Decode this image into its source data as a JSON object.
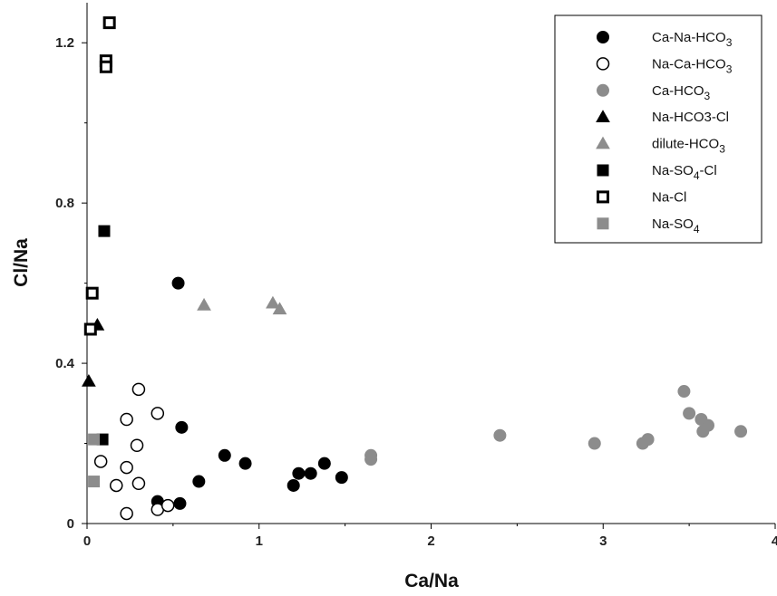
{
  "chart_data": {
    "type": "scatter",
    "xlabel": "Ca/Na",
    "ylabel": "Cl/Na",
    "xlim": [
      0,
      4
    ],
    "ylim": [
      0,
      1.3
    ],
    "x_ticks": [
      "0",
      "1",
      "2",
      "3",
      "4"
    ],
    "y_ticks": [
      "0",
      "0.4",
      "0.8",
      "1.2"
    ],
    "grid": false,
    "legend_position": "top-right",
    "colors": {
      "black": "#000000",
      "gray": "#8c8c8c"
    },
    "series": [
      {
        "name": "Ca-Na-HCO3",
        "marker": "circle-filled",
        "color": "#000000",
        "points": [
          [
            0.53,
            0.6
          ],
          [
            0.55,
            0.24
          ],
          [
            0.41,
            0.055
          ],
          [
            0.54,
            0.05
          ],
          [
            0.65,
            0.105
          ],
          [
            0.8,
            0.17
          ],
          [
            0.92,
            0.15
          ],
          [
            1.2,
            0.095
          ],
          [
            1.23,
            0.125
          ],
          [
            1.3,
            0.125
          ],
          [
            1.38,
            0.15
          ],
          [
            1.48,
            0.115
          ]
        ]
      },
      {
        "name": "Na-Ca-HCO3",
        "marker": "circle-open",
        "color": "#000000",
        "points": [
          [
            0.08,
            0.155
          ],
          [
            0.17,
            0.095
          ],
          [
            0.23,
            0.14
          ],
          [
            0.23,
            0.26
          ],
          [
            0.23,
            0.025
          ],
          [
            0.29,
            0.195
          ],
          [
            0.3,
            0.335
          ],
          [
            0.3,
            0.1
          ],
          [
            0.41,
            0.275
          ],
          [
            0.41,
            0.035
          ],
          [
            0.47,
            0.045
          ]
        ]
      },
      {
        "name": "Ca-HCO3",
        "marker": "circle-filled",
        "color": "#8c8c8c",
        "points": [
          [
            1.65,
            0.17
          ],
          [
            1.65,
            0.16
          ],
          [
            2.4,
            0.22
          ],
          [
            2.95,
            0.2
          ],
          [
            3.23,
            0.2
          ],
          [
            3.26,
            0.21
          ],
          [
            3.47,
            0.33
          ],
          [
            3.5,
            0.275
          ],
          [
            3.57,
            0.26
          ],
          [
            3.58,
            0.23
          ],
          [
            3.61,
            0.245
          ],
          [
            3.8,
            0.23
          ]
        ]
      },
      {
        "name": "Na-HCO3-Cl",
        "marker": "triangle-filled",
        "color": "#000000",
        "points": [
          [
            0.01,
            0.355
          ],
          [
            0.06,
            0.495
          ]
        ]
      },
      {
        "name": "dilute-HCO3",
        "marker": "triangle-filled",
        "color": "#8c8c8c",
        "points": [
          [
            0.68,
            0.545
          ],
          [
            1.08,
            0.55
          ],
          [
            1.12,
            0.535
          ]
        ]
      },
      {
        "name": "Na-SO4-Cl",
        "marker": "square-filled",
        "color": "#000000",
        "points": [
          [
            0.1,
            0.73
          ],
          [
            0.09,
            0.21
          ]
        ]
      },
      {
        "name": "Na-Cl",
        "marker": "square-open",
        "color": "#000000",
        "points": [
          [
            0.13,
            1.25
          ],
          [
            0.11,
            1.155
          ],
          [
            0.11,
            1.14
          ],
          [
            0.03,
            0.575
          ],
          [
            0.02,
            0.485
          ]
        ]
      },
      {
        "name": "Na-SO4",
        "marker": "square-filled",
        "color": "#8c8c8c",
        "points": [
          [
            0.04,
            0.21
          ],
          [
            0.04,
            0.105
          ]
        ]
      }
    ],
    "legend": [
      {
        "label": "Ca-Na-HCO3",
        "parts": [
          [
            "Ca-Na-HCO",
            ""
          ],
          [
            "3",
            "sub"
          ]
        ]
      },
      {
        "label": "Na-Ca-HCO3",
        "parts": [
          [
            "Na-Ca-HCO",
            ""
          ],
          [
            "3",
            "sub"
          ]
        ]
      },
      {
        "label": "Ca-HCO3",
        "parts": [
          [
            "Ca-HCO",
            ""
          ],
          [
            "3",
            "sub"
          ]
        ]
      },
      {
        "label": "Na-HCO3-Cl",
        "parts": [
          [
            "Na-HCO3-Cl",
            ""
          ]
        ]
      },
      {
        "label": "dilute-HCO3",
        "parts": [
          [
            "dilute-HCO",
            ""
          ],
          [
            "3",
            "sub"
          ]
        ]
      },
      {
        "label": "Na-SO4-Cl",
        "parts": [
          [
            "Na-SO",
            ""
          ],
          [
            "4",
            "sub"
          ],
          [
            "-Cl",
            ""
          ]
        ]
      },
      {
        "label": "Na-Cl",
        "parts": [
          [
            "Na-Cl",
            ""
          ]
        ]
      },
      {
        "label": "Na-SO4",
        "parts": [
          [
            "Na-SO",
            ""
          ],
          [
            "4",
            "sub"
          ]
        ]
      }
    ]
  }
}
